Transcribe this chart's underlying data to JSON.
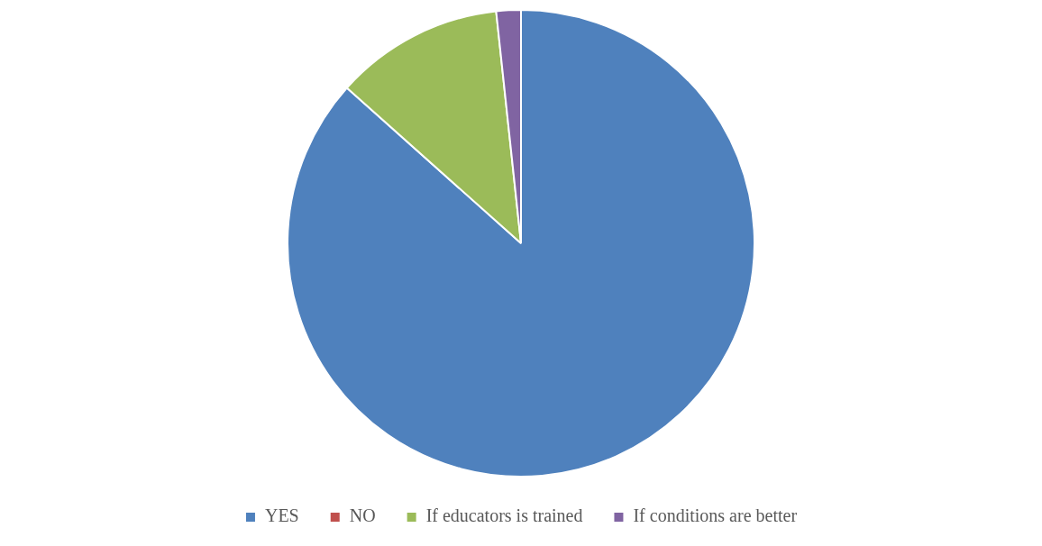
{
  "chart_data": {
    "type": "pie",
    "categories": [
      "YES",
      "NO",
      "If educators is trained",
      "If conditions are better"
    ],
    "values": [
      86.6,
      0,
      11.7,
      1.7
    ],
    "colors": [
      "#4f81bd",
      "#c0504d",
      "#9bbb59",
      "#8064a2"
    ],
    "legend": "bottom"
  }
}
